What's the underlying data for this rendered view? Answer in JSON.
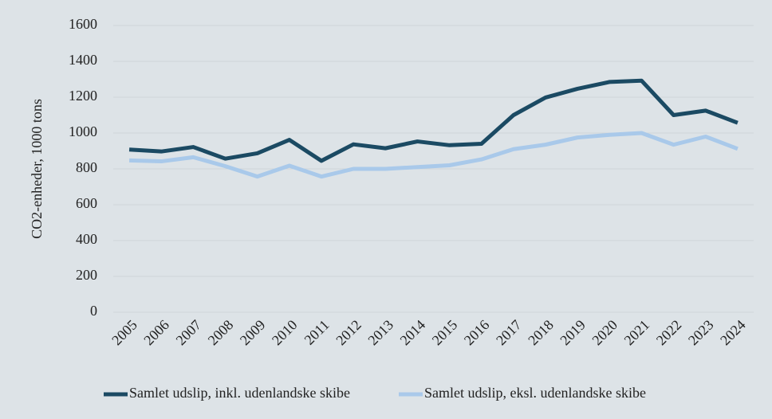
{
  "chart_data": {
    "type": "line",
    "y_label": "CO2-enheder, 1000 tons",
    "categories": [
      "2005",
      "2006",
      "2007",
      "2008",
      "2009",
      "2010",
      "2011",
      "2012",
      "2013",
      "2014",
      "2015",
      "2016",
      "2017",
      "2018",
      "2019",
      "2020",
      "2021",
      "2022",
      "2023",
      "2024"
    ],
    "series": [
      {
        "name": "Samlet udslip, inkl. udenlandske skibe",
        "color": "#1b4a63",
        "values": [
          908,
          897,
          922,
          857,
          887,
          962,
          845,
          937,
          915,
          953,
          932,
          940,
          1100,
          1198,
          1247,
          1285,
          1292,
          1100,
          1125,
          1057
        ]
      },
      {
        "name": "Samlet udslip, eksl. udenlandske skibe",
        "color": "#a9c9ea",
        "values": [
          847,
          842,
          865,
          815,
          757,
          818,
          757,
          800,
          800,
          810,
          820,
          853,
          910,
          935,
          975,
          990,
          1000,
          935,
          980,
          912
        ]
      }
    ],
    "ylim": [
      0,
      1600
    ],
    "yticks": [
      0,
      200,
      400,
      600,
      800,
      1000,
      1200,
      1400,
      1600
    ],
    "grid": true,
    "legend": "bottom"
  }
}
